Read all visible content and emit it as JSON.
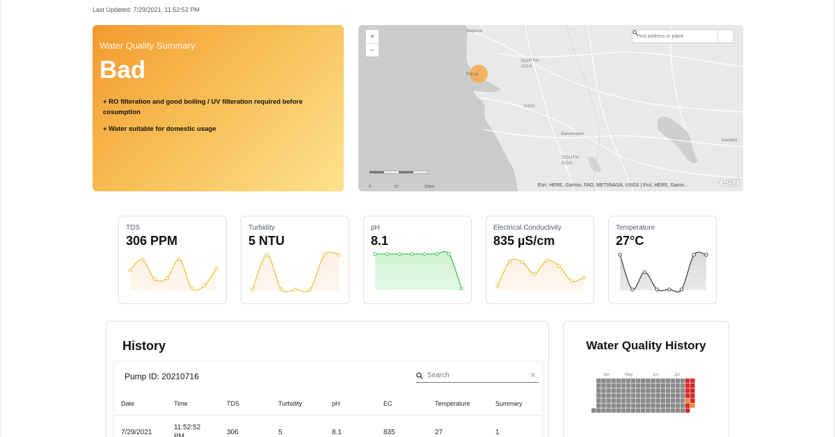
{
  "last_updated": "Last Updated: 7/29/2021, 11:52:52 PM",
  "summary": {
    "title": "Water Quality Summary",
    "status": "Bad",
    "notes": [
      "+ RO filteration and good boiling / UV filteration required before cosumption",
      "+ Water suitable for domestic usage"
    ]
  },
  "map": {
    "zoom_in": "+",
    "zoom_out": "−",
    "search_placeholder": "Find address or place",
    "labels": {
      "mapusa": "Mapusa",
      "panaji": "Panaji",
      "north_goa": "NORTH GOA",
      "goa": "GOA",
      "sanvordem": "Sanvordem",
      "south_goa": "SOUTH GOA",
      "dandeli": "Dandeli"
    },
    "scale": {
      "zero": "0",
      "ten": "10",
      "twenty": "20km"
    },
    "attribution": "Esri, HERE, Garmin, FAO, METI/NASA, USGS | Esri, HERE, Garmi...",
    "logo": "esri",
    "marker_color": "#f5a94a"
  },
  "metrics": [
    {
      "label": "TDS",
      "value": "306 PPM",
      "color": "#e8c33a",
      "fill": "#fdf0e2",
      "values": [
        0.55,
        0.85,
        0.3,
        0.33,
        0.86,
        0.05,
        0.12,
        0.6
      ]
    },
    {
      "label": "Turbidity",
      "value": "5 NTU",
      "color": "#e8c33a",
      "fill": "#fdf0e2",
      "values": [
        0.02,
        0.98,
        0.02,
        0.02,
        0.02,
        0.98,
        0.98
      ]
    },
    {
      "label": "pH",
      "value": "8.1",
      "color": "#3cc258",
      "fill": "#cff3d2",
      "values": [
        1,
        1,
        1,
        1,
        1,
        1,
        1,
        0.05
      ]
    },
    {
      "label": "Electrical Conductivity",
      "value": "835 µS/cm",
      "color": "#e8c33a",
      "fill": "#fdf0e2",
      "values": [
        0.12,
        0.8,
        0.78,
        0.45,
        0.82,
        0.67,
        0.25,
        0.35
      ]
    },
    {
      "label": "Temperature",
      "value": "27°C",
      "color": "#444444",
      "fill": "#d9d9d9",
      "values": [
        0.98,
        0.02,
        0.5,
        0.02,
        0.02,
        0.02,
        0.98,
        0.98
      ]
    }
  ],
  "history": {
    "title": "History",
    "pump_id": "Pump ID: 20210716",
    "search_placeholder": "Search",
    "clear": "✕",
    "columns": [
      "Date",
      "Time",
      "TDS",
      "Turbidity",
      "pH",
      "EC",
      "Temperature",
      "Summary"
    ],
    "rows": [
      [
        "7/29/2021",
        "11:52:52 PM",
        "306",
        "5",
        "8.1",
        "835",
        "27",
        "1"
      ]
    ]
  },
  "wq_history": {
    "title": "Water Quality History",
    "months": [
      "Apr",
      "May",
      "Jun",
      "Jul"
    ],
    "colors": {
      "normal": "#8a8a8a",
      "bad": "#d62828",
      "warn": "#f28b30"
    }
  }
}
